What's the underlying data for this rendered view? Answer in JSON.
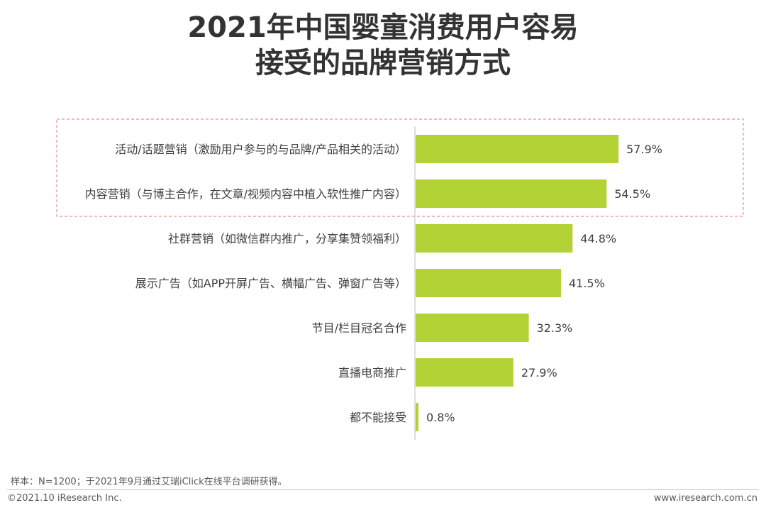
{
  "title": {
    "line1": "2021年中国婴童消费用户容易",
    "line2": "接受的品牌营销方式"
  },
  "chart_data": {
    "type": "bar",
    "orientation": "horizontal",
    "categories": [
      "活动/话题营销（激励用户参与的与品牌/产品相关的活动）",
      "内容营销（与博主合作，在文章/视频内容中植入软性推广内容）",
      "社群营销（如微信群内推广，分享集赞领福利）",
      "展示广告（如APP开屏广告、横幅广告、弹窗广告等）",
      "节目/栏目冠名合作",
      "直播电商推广",
      "都不能接受"
    ],
    "values": [
      57.9,
      54.5,
      44.8,
      41.5,
      32.3,
      27.9,
      0.8
    ],
    "labels": [
      "57.9%",
      "54.5%",
      "44.8%",
      "41.5%",
      "32.3%",
      "27.9%",
      "0.8%"
    ],
    "xlim": [
      0,
      100
    ],
    "grid": false,
    "highlighted_categories": [
      0,
      1
    ],
    "colors": {
      "bar": "#b2d235",
      "highlight_border": "#e8908a",
      "axis": "#bfbfbf"
    }
  },
  "footer": {
    "note": "样本：N=1200；于2021年9月通过艾瑞iClick在线平台调研获得。",
    "copyright": "©2021.10 iResearch Inc.",
    "website": "www.iresearch.com.cn"
  }
}
